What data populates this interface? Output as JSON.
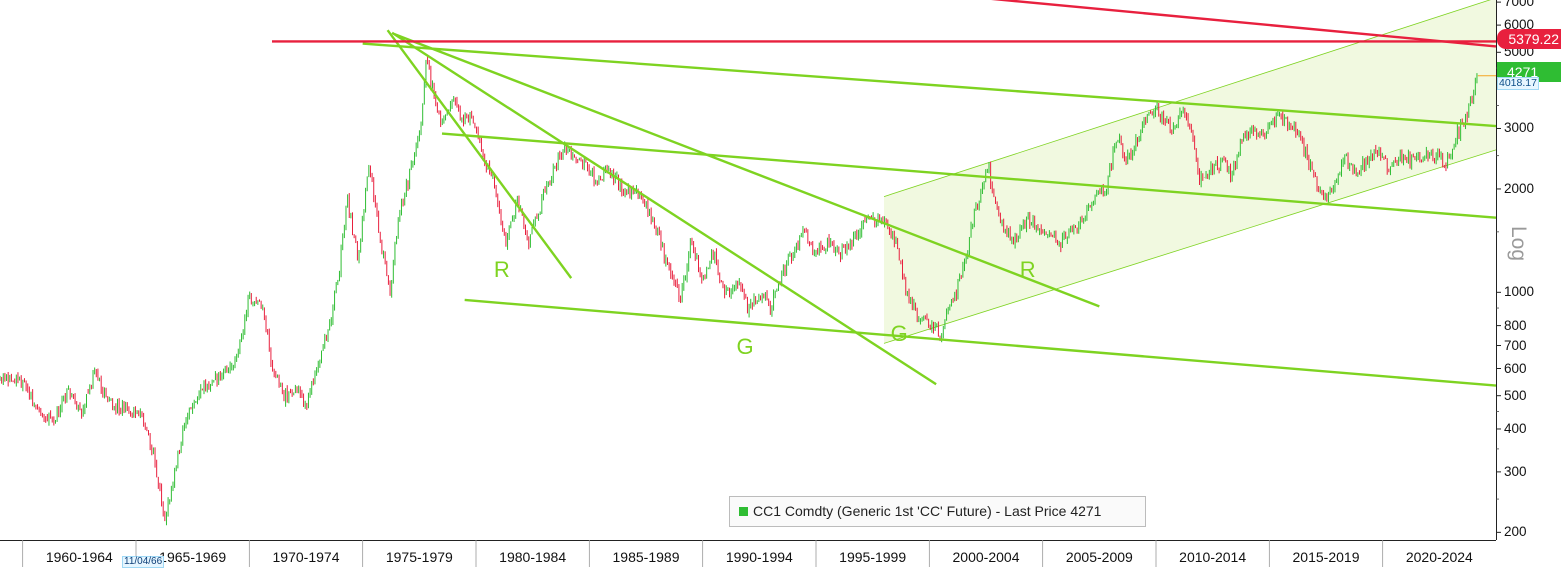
{
  "chart_data": {
    "type": "candlestick",
    "instrument": "CC1 Comdty",
    "legend": {
      "label": "CC1 Comdty (Generic 1st 'CC' Future) - Last Price 4271",
      "color": "#2fbd33"
    },
    "y_scale": "log",
    "y_axis_title": "Log",
    "y_ticks": [
      7000,
      6000,
      5000,
      4000,
      3000,
      2000,
      1000,
      800,
      700,
      600,
      500,
      400,
      300,
      200
    ],
    "x_categories": [
      "1960-1964",
      "1965-1969",
      "1970-1974",
      "1975-1979",
      "1980-1984",
      "1985-1989",
      "1990-1994",
      "1995-1999",
      "2000-2004",
      "2005-2009",
      "2010-2014",
      "2015-2019",
      "2020-2024"
    ],
    "x_range": [
      1959,
      2025
    ],
    "y_range": [
      190,
      7100
    ],
    "last_price": "4271",
    "resistance_level": "5379.22",
    "secondary_value": "4018.17",
    "cursor_date": "11/04/66",
    "up_color": "#2fbd33",
    "down_color": "#e8203e",
    "trendline_color": "#7ed321",
    "resistance_color": "#e8203e",
    "price_path": [
      [
        1959.0,
        560
      ],
      [
        1960.0,
        545
      ],
      [
        1960.6,
        470
      ],
      [
        1961.3,
        420
      ],
      [
        1962.0,
        510
      ],
      [
        1962.6,
        450
      ],
      [
        1963.2,
        580
      ],
      [
        1963.8,
        480
      ],
      [
        1964.5,
        455
      ],
      [
        1965.3,
        430
      ],
      [
        1965.8,
        330
      ],
      [
        1966.3,
        215
      ],
      [
        1966.7,
        300
      ],
      [
        1967.2,
        420
      ],
      [
        1967.8,
        520
      ],
      [
        1968.5,
        560
      ],
      [
        1969.1,
        590
      ],
      [
        1969.6,
        720
      ],
      [
        1970.0,
        960
      ],
      [
        1970.6,
        900
      ],
      [
        1971.0,
        620
      ],
      [
        1971.5,
        500
      ],
      [
        1972.0,
        520
      ],
      [
        1972.5,
        470
      ],
      [
        1973.0,
        620
      ],
      [
        1973.5,
        780
      ],
      [
        1974.0,
        1200
      ],
      [
        1974.3,
        1900
      ],
      [
        1974.8,
        1250
      ],
      [
        1975.3,
        2400
      ],
      [
        1975.8,
        1400
      ],
      [
        1976.2,
        1000
      ],
      [
        1976.6,
        1700
      ],
      [
        1977.0,
        2100
      ],
      [
        1977.5,
        2800
      ],
      [
        1977.8,
        4800
      ],
      [
        1978.2,
        3600
      ],
      [
        1978.5,
        3000
      ],
      [
        1979.0,
        3700
      ],
      [
        1979.4,
        3100
      ],
      [
        1979.8,
        3300
      ],
      [
        1980.3,
        2500
      ],
      [
        1980.8,
        2100
      ],
      [
        1981.3,
        1350
      ],
      [
        1981.8,
        1900
      ],
      [
        1982.3,
        1400
      ],
      [
        1982.9,
        1850
      ],
      [
        1983.5,
        2300
      ],
      [
        1983.9,
        2700
      ],
      [
        1984.3,
        2500
      ],
      [
        1984.8,
        2400
      ],
      [
        1985.3,
        2100
      ],
      [
        1985.8,
        2300
      ],
      [
        1986.5,
        2000
      ],
      [
        1987.0,
        1950
      ],
      [
        1987.5,
        1800
      ],
      [
        1988.0,
        1500
      ],
      [
        1988.5,
        1150
      ],
      [
        1989.0,
        960
      ],
      [
        1989.5,
        1400
      ],
      [
        1990.0,
        1100
      ],
      [
        1990.5,
        1300
      ],
      [
        1991.0,
        980
      ],
      [
        1991.5,
        1100
      ],
      [
        1992.0,
        900
      ],
      [
        1992.6,
        1000
      ],
      [
        1993.0,
        900
      ],
      [
        1993.5,
        1150
      ],
      [
        1994.0,
        1300
      ],
      [
        1994.5,
        1500
      ],
      [
        1995.0,
        1300
      ],
      [
        1995.5,
        1400
      ],
      [
        1996.0,
        1300
      ],
      [
        1996.6,
        1400
      ],
      [
        1997.0,
        1550
      ],
      [
        1997.5,
        1650
      ],
      [
        1998.0,
        1600
      ],
      [
        1998.5,
        1400
      ],
      [
        1999.0,
        1000
      ],
      [
        1999.5,
        850
      ],
      [
        2000.0,
        800
      ],
      [
        2000.5,
        760
      ],
      [
        2000.9,
        900
      ],
      [
        2001.4,
        1100
      ],
      [
        2001.9,
        1600
      ],
      [
        2002.6,
        2300
      ],
      [
        2002.9,
        1800
      ],
      [
        2003.3,
        1500
      ],
      [
        2003.8,
        1400
      ],
      [
        2004.3,
        1650
      ],
      [
        2004.8,
        1550
      ],
      [
        2005.3,
        1500
      ],
      [
        2005.8,
        1400
      ],
      [
        2006.3,
        1550
      ],
      [
        2006.8,
        1600
      ],
      [
        2007.3,
        1900
      ],
      [
        2007.8,
        2000
      ],
      [
        2008.3,
        2900
      ],
      [
        2008.7,
        2400
      ],
      [
        2009.0,
        2600
      ],
      [
        2009.5,
        3200
      ],
      [
        2010.0,
        3400
      ],
      [
        2010.5,
        3100
      ],
      [
        2010.9,
        3000
      ],
      [
        2011.2,
        3500
      ],
      [
        2011.6,
        3000
      ],
      [
        2011.9,
        2100
      ],
      [
        2012.4,
        2300
      ],
      [
        2012.9,
        2400
      ],
      [
        2013.3,
        2200
      ],
      [
        2013.8,
        2800
      ],
      [
        2014.3,
        3000
      ],
      [
        2014.8,
        2900
      ],
      [
        2015.3,
        3300
      ],
      [
        2015.8,
        3100
      ],
      [
        2016.3,
        2900
      ],
      [
        2016.9,
        2200
      ],
      [
        2017.3,
        1900
      ],
      [
        2017.8,
        2000
      ],
      [
        2018.3,
        2500
      ],
      [
        2018.8,
        2200
      ],
      [
        2019.3,
        2400
      ],
      [
        2019.8,
        2600
      ],
      [
        2020.3,
        2300
      ],
      [
        2020.8,
        2500
      ],
      [
        2021.3,
        2400
      ],
      [
        2021.8,
        2500
      ],
      [
        2022.3,
        2500
      ],
      [
        2022.8,
        2400
      ],
      [
        2023.3,
        2900
      ],
      [
        2023.8,
        3400
      ],
      [
        2024.2,
        4271
      ]
    ],
    "trendlines": [
      {
        "name": "descending-resistance-1",
        "color": "#7ed321",
        "points": [
          [
            1975.0,
            5300
          ],
          [
            2025.0,
            3050
          ]
        ]
      },
      {
        "name": "descending-resistance-2",
        "color": "#7ed321",
        "points": [
          [
            1978.5,
            2900
          ],
          [
            2025.0,
            1650
          ]
        ]
      },
      {
        "name": "descending-support",
        "color": "#7ed321",
        "points": [
          [
            1979.5,
            950
          ],
          [
            2025.0,
            535
          ]
        ]
      },
      {
        "name": "fan-steep",
        "color": "#7ed321",
        "points": [
          [
            1976.1,
            5800
          ],
          [
            1984.2,
            1100
          ]
        ]
      },
      {
        "name": "fan-mid",
        "color": "#7ed321",
        "points": [
          [
            1976.3,
            5700
          ],
          [
            2000.3,
            540
          ]
        ]
      },
      {
        "name": "fan-shallow",
        "color": "#7ed321",
        "points": [
          [
            1976.4,
            5650
          ],
          [
            2007.5,
            910
          ]
        ]
      },
      {
        "name": "resistance-horizontal",
        "color": "#e8203e",
        "points": [
          [
            1971.0,
            5379.22
          ],
          [
            2025.0,
            5379.22
          ]
        ]
      },
      {
        "name": "resistance-descending",
        "color": "#e8203e",
        "points": [
          [
            2000.4,
            7400
          ],
          [
            2025.0,
            5200
          ]
        ]
      }
    ],
    "channel": {
      "color": "#7ed321",
      "upper": [
        [
          1998.0,
          1900
        ],
        [
          2025.0,
          7200
        ]
      ],
      "lower": [
        [
          1998.0,
          710
        ],
        [
          2025.0,
          2600
        ]
      ],
      "shaded_start": [
        [
          1998.0,
          760
        ],
        [
          1998.0,
          1900
        ]
      ]
    },
    "pattern_labels": [
      {
        "text": "R",
        "x": 1981.1,
        "y": 1170
      },
      {
        "text": "G",
        "x": 1991.8,
        "y": 700
      },
      {
        "text": "G",
        "x": 1998.6,
        "y": 760
      },
      {
        "text": "R",
        "x": 2004.3,
        "y": 1170
      }
    ]
  }
}
